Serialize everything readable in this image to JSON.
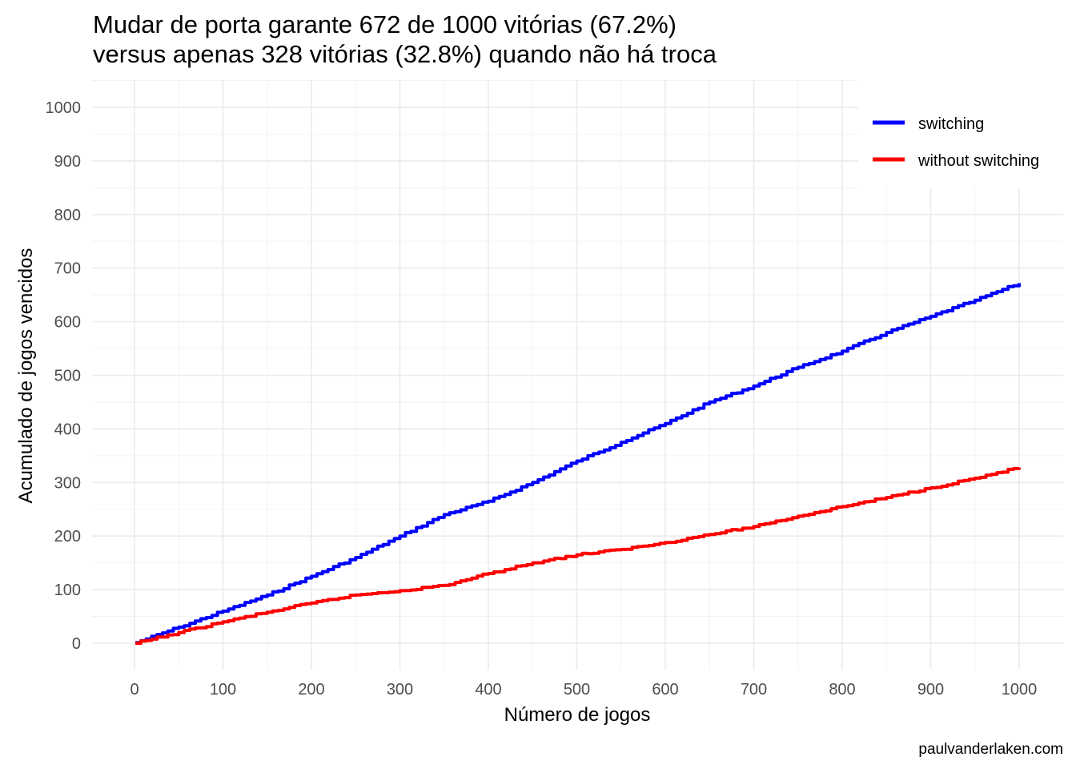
{
  "chart_data": {
    "type": "line",
    "title": "Mudar de porta garante 672 de 1000 vitórias (67.2%)",
    "subtitle": "versus apenas 328 vitórias (32.8%) quando não há troca",
    "xlabel": "Número de jogos",
    "ylabel": "Acumulado de jogos vencidos",
    "caption": "paulvanderlaken.com",
    "xlim": [
      0,
      1000
    ],
    "ylim": [
      0,
      1000
    ],
    "x_ticks": [
      0,
      100,
      200,
      300,
      400,
      500,
      600,
      700,
      800,
      900,
      1000
    ],
    "y_ticks": [
      0,
      100,
      200,
      300,
      400,
      500,
      600,
      700,
      800,
      900,
      1000
    ],
    "grid": true,
    "legend_position": "top-right",
    "series": [
      {
        "name": "switching",
        "color": "#0000ff",
        "x": [
          1,
          50,
          100,
          150,
          200,
          250,
          300,
          350,
          400,
          450,
          500,
          550,
          600,
          650,
          700,
          750,
          800,
          850,
          900,
          950,
          1000
        ],
        "y": [
          1,
          30,
          60,
          90,
          125,
          160,
          200,
          240,
          265,
          300,
          340,
          375,
          410,
          450,
          480,
          515,
          545,
          580,
          610,
          640,
          672
        ]
      },
      {
        "name": "without switching",
        "color": "#ff0000",
        "x": [
          1,
          50,
          100,
          150,
          200,
          250,
          300,
          350,
          400,
          450,
          500,
          550,
          600,
          650,
          700,
          750,
          800,
          850,
          900,
          950,
          1000
        ],
        "y": [
          0,
          20,
          40,
          58,
          75,
          90,
          98,
          108,
          130,
          150,
          165,
          175,
          188,
          203,
          218,
          237,
          255,
          272,
          290,
          308,
          328
        ]
      }
    ]
  }
}
